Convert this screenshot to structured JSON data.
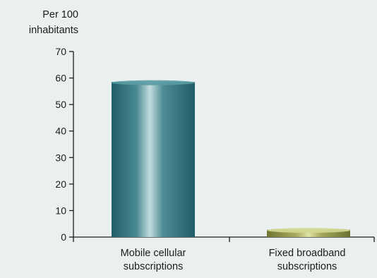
{
  "chart_data": {
    "type": "bar",
    "ylabel": "Per 100 inhabitants",
    "ylabel_lines": [
      "Per 100",
      "inhabitants"
    ],
    "ylim": [
      0,
      70
    ],
    "yticks": [
      "0",
      "10",
      "20",
      "30",
      "40",
      "50",
      "60",
      "70"
    ],
    "categories": [
      {
        "lines": [
          "Mobile cellular",
          "subscriptions"
        ]
      },
      {
        "lines": [
          "Fixed broadband",
          "subscriptions"
        ]
      }
    ],
    "values": [
      58.5,
      2.8
    ],
    "colors": [
      "#4e8e96",
      "#c2c67e"
    ]
  }
}
